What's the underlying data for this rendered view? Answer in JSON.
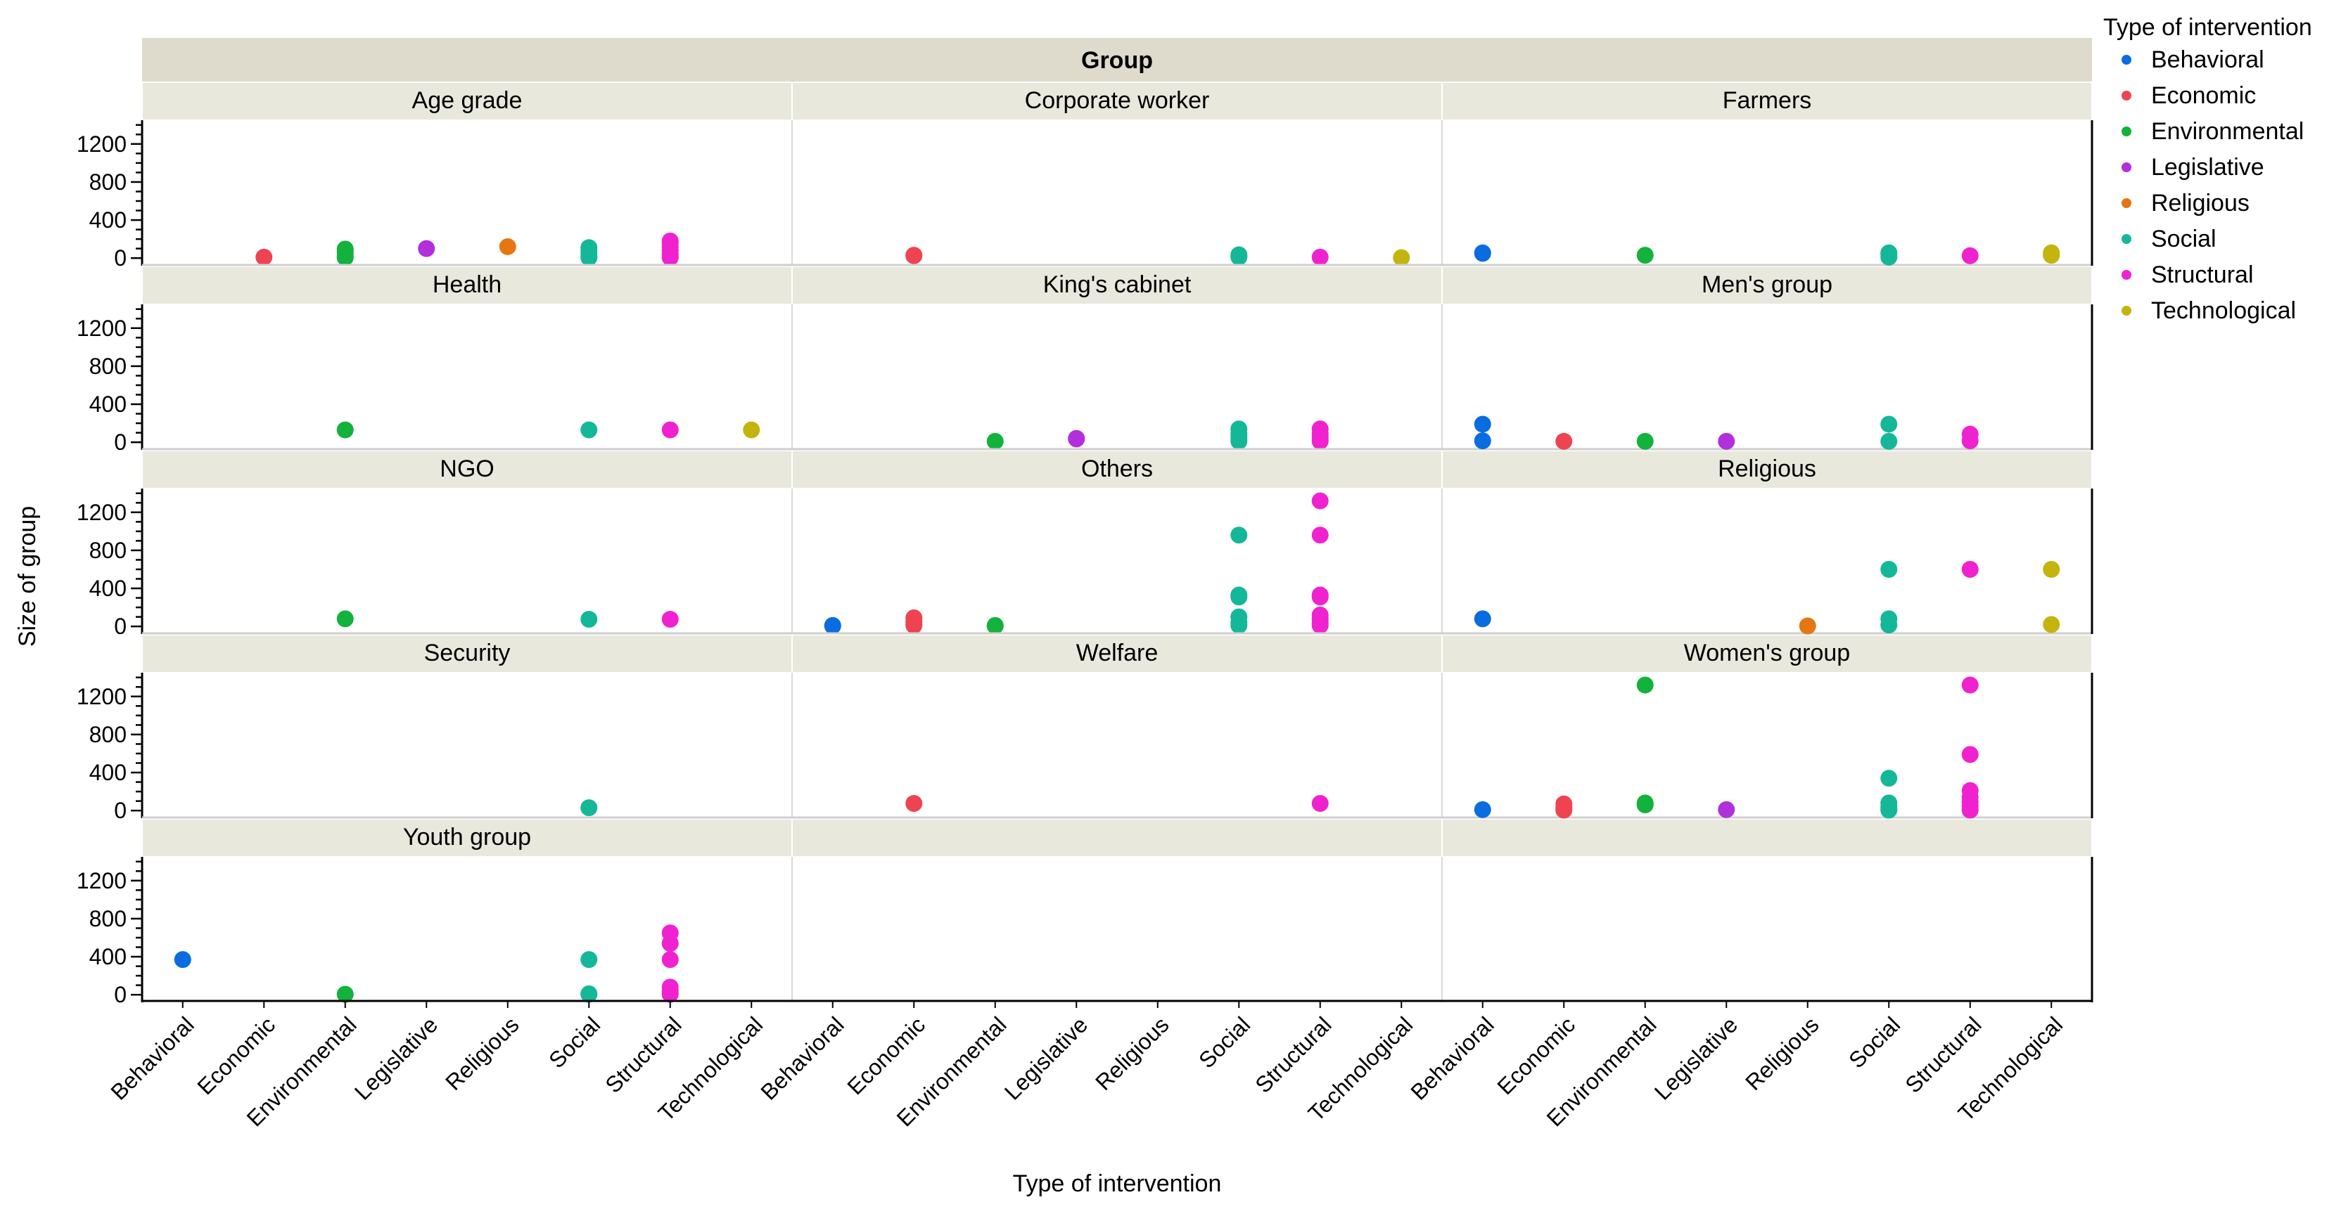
{
  "chart_data": {
    "type": "scatter",
    "title": "",
    "facet_header": "Group",
    "xlabel": "Type of intervention",
    "ylabel": "Size of group",
    "categories": [
      "Behavioral",
      "Economic",
      "Environmental",
      "Legislative",
      "Religious",
      "Social",
      "Structural",
      "Technological"
    ],
    "ylim": [
      -80,
      1450
    ],
    "yticks": [
      0,
      400,
      800,
      1200
    ],
    "legend": {
      "title": "Type of intervention",
      "position": "right",
      "items": [
        {
          "label": "Behavioral",
          "color": "#0a6ddf"
        },
        {
          "label": "Economic",
          "color": "#ef4351"
        },
        {
          "label": "Environmental",
          "color": "#12b23c"
        },
        {
          "label": "Legislative",
          "color": "#b22fdc"
        },
        {
          "label": "Religious",
          "color": "#e67611"
        },
        {
          "label": "Social",
          "color": "#14b898"
        },
        {
          "label": "Structural",
          "color": "#f022d0"
        },
        {
          "label": "Technological",
          "color": "#c4b40e"
        }
      ]
    },
    "panels": [
      {
        "name": "Age grade",
        "points": [
          {
            "cat": "Economic",
            "y": 10
          },
          {
            "cat": "Environmental",
            "y": 95
          },
          {
            "cat": "Environmental",
            "y": 60
          },
          {
            "cat": "Environmental",
            "y": 20
          },
          {
            "cat": "Environmental",
            "y": 5
          },
          {
            "cat": "Legislative",
            "y": 100
          },
          {
            "cat": "Religious",
            "y": 120
          },
          {
            "cat": "Social",
            "y": 110
          },
          {
            "cat": "Social",
            "y": 80
          },
          {
            "cat": "Social",
            "y": 40
          },
          {
            "cat": "Social",
            "y": 15
          },
          {
            "cat": "Social",
            "y": 5
          },
          {
            "cat": "Structural",
            "y": 180
          },
          {
            "cat": "Structural",
            "y": 160
          },
          {
            "cat": "Structural",
            "y": 120
          },
          {
            "cat": "Structural",
            "y": 80
          },
          {
            "cat": "Structural",
            "y": 40
          },
          {
            "cat": "Structural",
            "y": 15
          },
          {
            "cat": "Structural",
            "y": 5
          }
        ]
      },
      {
        "name": "Corporate worker",
        "points": [
          {
            "cat": "Economic",
            "y": 30
          },
          {
            "cat": "Economic",
            "y": 25
          },
          {
            "cat": "Social",
            "y": 35
          },
          {
            "cat": "Social",
            "y": 20
          },
          {
            "cat": "Social",
            "y": 10
          },
          {
            "cat": "Structural",
            "y": 10
          },
          {
            "cat": "Technological",
            "y": 5
          }
        ]
      },
      {
        "name": "Farmers",
        "points": [
          {
            "cat": "Behavioral",
            "y": 55
          },
          {
            "cat": "Behavioral",
            "y": 50
          },
          {
            "cat": "Environmental",
            "y": 30
          },
          {
            "cat": "Social",
            "y": 55
          },
          {
            "cat": "Social",
            "y": 40
          },
          {
            "cat": "Social",
            "y": 10
          },
          {
            "cat": "Structural",
            "y": 25
          },
          {
            "cat": "Technological",
            "y": 55
          },
          {
            "cat": "Technological",
            "y": 30
          }
        ]
      },
      {
        "name": "Health",
        "points": [
          {
            "cat": "Environmental",
            "y": 130
          },
          {
            "cat": "Social",
            "y": 130
          },
          {
            "cat": "Structural",
            "y": 130
          },
          {
            "cat": "Technological",
            "y": 130
          }
        ]
      },
      {
        "name": "King's cabinet",
        "points": [
          {
            "cat": "Environmental",
            "y": 10
          },
          {
            "cat": "Legislative",
            "y": 40
          },
          {
            "cat": "Legislative",
            "y": 35
          },
          {
            "cat": "Social",
            "y": 140
          },
          {
            "cat": "Social",
            "y": 90
          },
          {
            "cat": "Social",
            "y": 60
          },
          {
            "cat": "Social",
            "y": 30
          },
          {
            "cat": "Social",
            "y": 10
          },
          {
            "cat": "Structural",
            "y": 140
          },
          {
            "cat": "Structural",
            "y": 90
          },
          {
            "cat": "Structural",
            "y": 60
          },
          {
            "cat": "Structural",
            "y": 30
          },
          {
            "cat": "Structural",
            "y": 10
          }
        ]
      },
      {
        "name": "Men's group",
        "points": [
          {
            "cat": "Behavioral",
            "y": 190
          },
          {
            "cat": "Behavioral",
            "y": 15
          },
          {
            "cat": "Economic",
            "y": 10
          },
          {
            "cat": "Environmental",
            "y": 10
          },
          {
            "cat": "Legislative",
            "y": 10
          },
          {
            "cat": "Social",
            "y": 190
          },
          {
            "cat": "Social",
            "y": 10
          },
          {
            "cat": "Structural",
            "y": 85
          },
          {
            "cat": "Structural",
            "y": 15
          }
        ]
      },
      {
        "name": "NGO",
        "points": [
          {
            "cat": "Environmental",
            "y": 80
          },
          {
            "cat": "Social",
            "y": 75
          },
          {
            "cat": "Structural",
            "y": 75
          }
        ]
      },
      {
        "name": "Others",
        "points": [
          {
            "cat": "Behavioral",
            "y": 10
          },
          {
            "cat": "Behavioral",
            "y": 5
          },
          {
            "cat": "Economic",
            "y": 90
          },
          {
            "cat": "Economic",
            "y": 50
          },
          {
            "cat": "Economic",
            "y": 25
          },
          {
            "cat": "Economic",
            "y": 10
          },
          {
            "cat": "Environmental",
            "y": 10
          },
          {
            "cat": "Environmental",
            "y": 5
          },
          {
            "cat": "Social",
            "y": 960
          },
          {
            "cat": "Social",
            "y": 330
          },
          {
            "cat": "Social",
            "y": 310
          },
          {
            "cat": "Social",
            "y": 100
          },
          {
            "cat": "Social",
            "y": 40
          },
          {
            "cat": "Social",
            "y": 10
          },
          {
            "cat": "Structural",
            "y": 1320
          },
          {
            "cat": "Structural",
            "y": 960
          },
          {
            "cat": "Structural",
            "y": 330
          },
          {
            "cat": "Structural",
            "y": 310
          },
          {
            "cat": "Structural",
            "y": 120
          },
          {
            "cat": "Structural",
            "y": 80
          },
          {
            "cat": "Structural",
            "y": 40
          },
          {
            "cat": "Structural",
            "y": 10
          }
        ]
      },
      {
        "name": "Religious",
        "points": [
          {
            "cat": "Behavioral",
            "y": 80
          },
          {
            "cat": "Religious",
            "y": 5
          },
          {
            "cat": "Social",
            "y": 600
          },
          {
            "cat": "Social",
            "y": 80
          },
          {
            "cat": "Social",
            "y": 15
          },
          {
            "cat": "Structural",
            "y": 600
          },
          {
            "cat": "Technological",
            "y": 600
          },
          {
            "cat": "Technological",
            "y": 20
          }
        ]
      },
      {
        "name": "Security",
        "points": [
          {
            "cat": "Social",
            "y": 30
          }
        ]
      },
      {
        "name": "Welfare",
        "points": [
          {
            "cat": "Economic",
            "y": 75
          },
          {
            "cat": "Structural",
            "y": 75
          }
        ]
      },
      {
        "name": "Women's group",
        "points": [
          {
            "cat": "Behavioral",
            "y": 10
          },
          {
            "cat": "Economic",
            "y": 70
          },
          {
            "cat": "Economic",
            "y": 35
          },
          {
            "cat": "Economic",
            "y": 15
          },
          {
            "cat": "Economic",
            "y": 5
          },
          {
            "cat": "Environmental",
            "y": 1320
          },
          {
            "cat": "Environmental",
            "y": 80
          },
          {
            "cat": "Environmental",
            "y": 60
          },
          {
            "cat": "Legislative",
            "y": 10
          },
          {
            "cat": "Social",
            "y": 340
          },
          {
            "cat": "Social",
            "y": 80
          },
          {
            "cat": "Social",
            "y": 40
          },
          {
            "cat": "Social",
            "y": 15
          },
          {
            "cat": "Social",
            "y": 5
          },
          {
            "cat": "Structural",
            "y": 1320
          },
          {
            "cat": "Structural",
            "y": 590
          },
          {
            "cat": "Structural",
            "y": 210
          },
          {
            "cat": "Structural",
            "y": 140
          },
          {
            "cat": "Structural",
            "y": 90
          },
          {
            "cat": "Structural",
            "y": 50
          },
          {
            "cat": "Structural",
            "y": 20
          },
          {
            "cat": "Structural",
            "y": 5
          }
        ]
      },
      {
        "name": "Youth group",
        "points": [
          {
            "cat": "Behavioral",
            "y": 370
          },
          {
            "cat": "Environmental",
            "y": 5
          },
          {
            "cat": "Social",
            "y": 370
          },
          {
            "cat": "Social",
            "y": 10
          },
          {
            "cat": "Social",
            "y": 5
          },
          {
            "cat": "Structural",
            "y": 650
          },
          {
            "cat": "Structural",
            "y": 540
          },
          {
            "cat": "Structural",
            "y": 370
          },
          {
            "cat": "Structural",
            "y": 80
          },
          {
            "cat": "Structural",
            "y": 40
          },
          {
            "cat": "Structural",
            "y": 15
          },
          {
            "cat": "Structural",
            "y": 5
          }
        ]
      },
      {
        "name": "",
        "points": []
      },
      {
        "name": "",
        "points": []
      }
    ]
  }
}
